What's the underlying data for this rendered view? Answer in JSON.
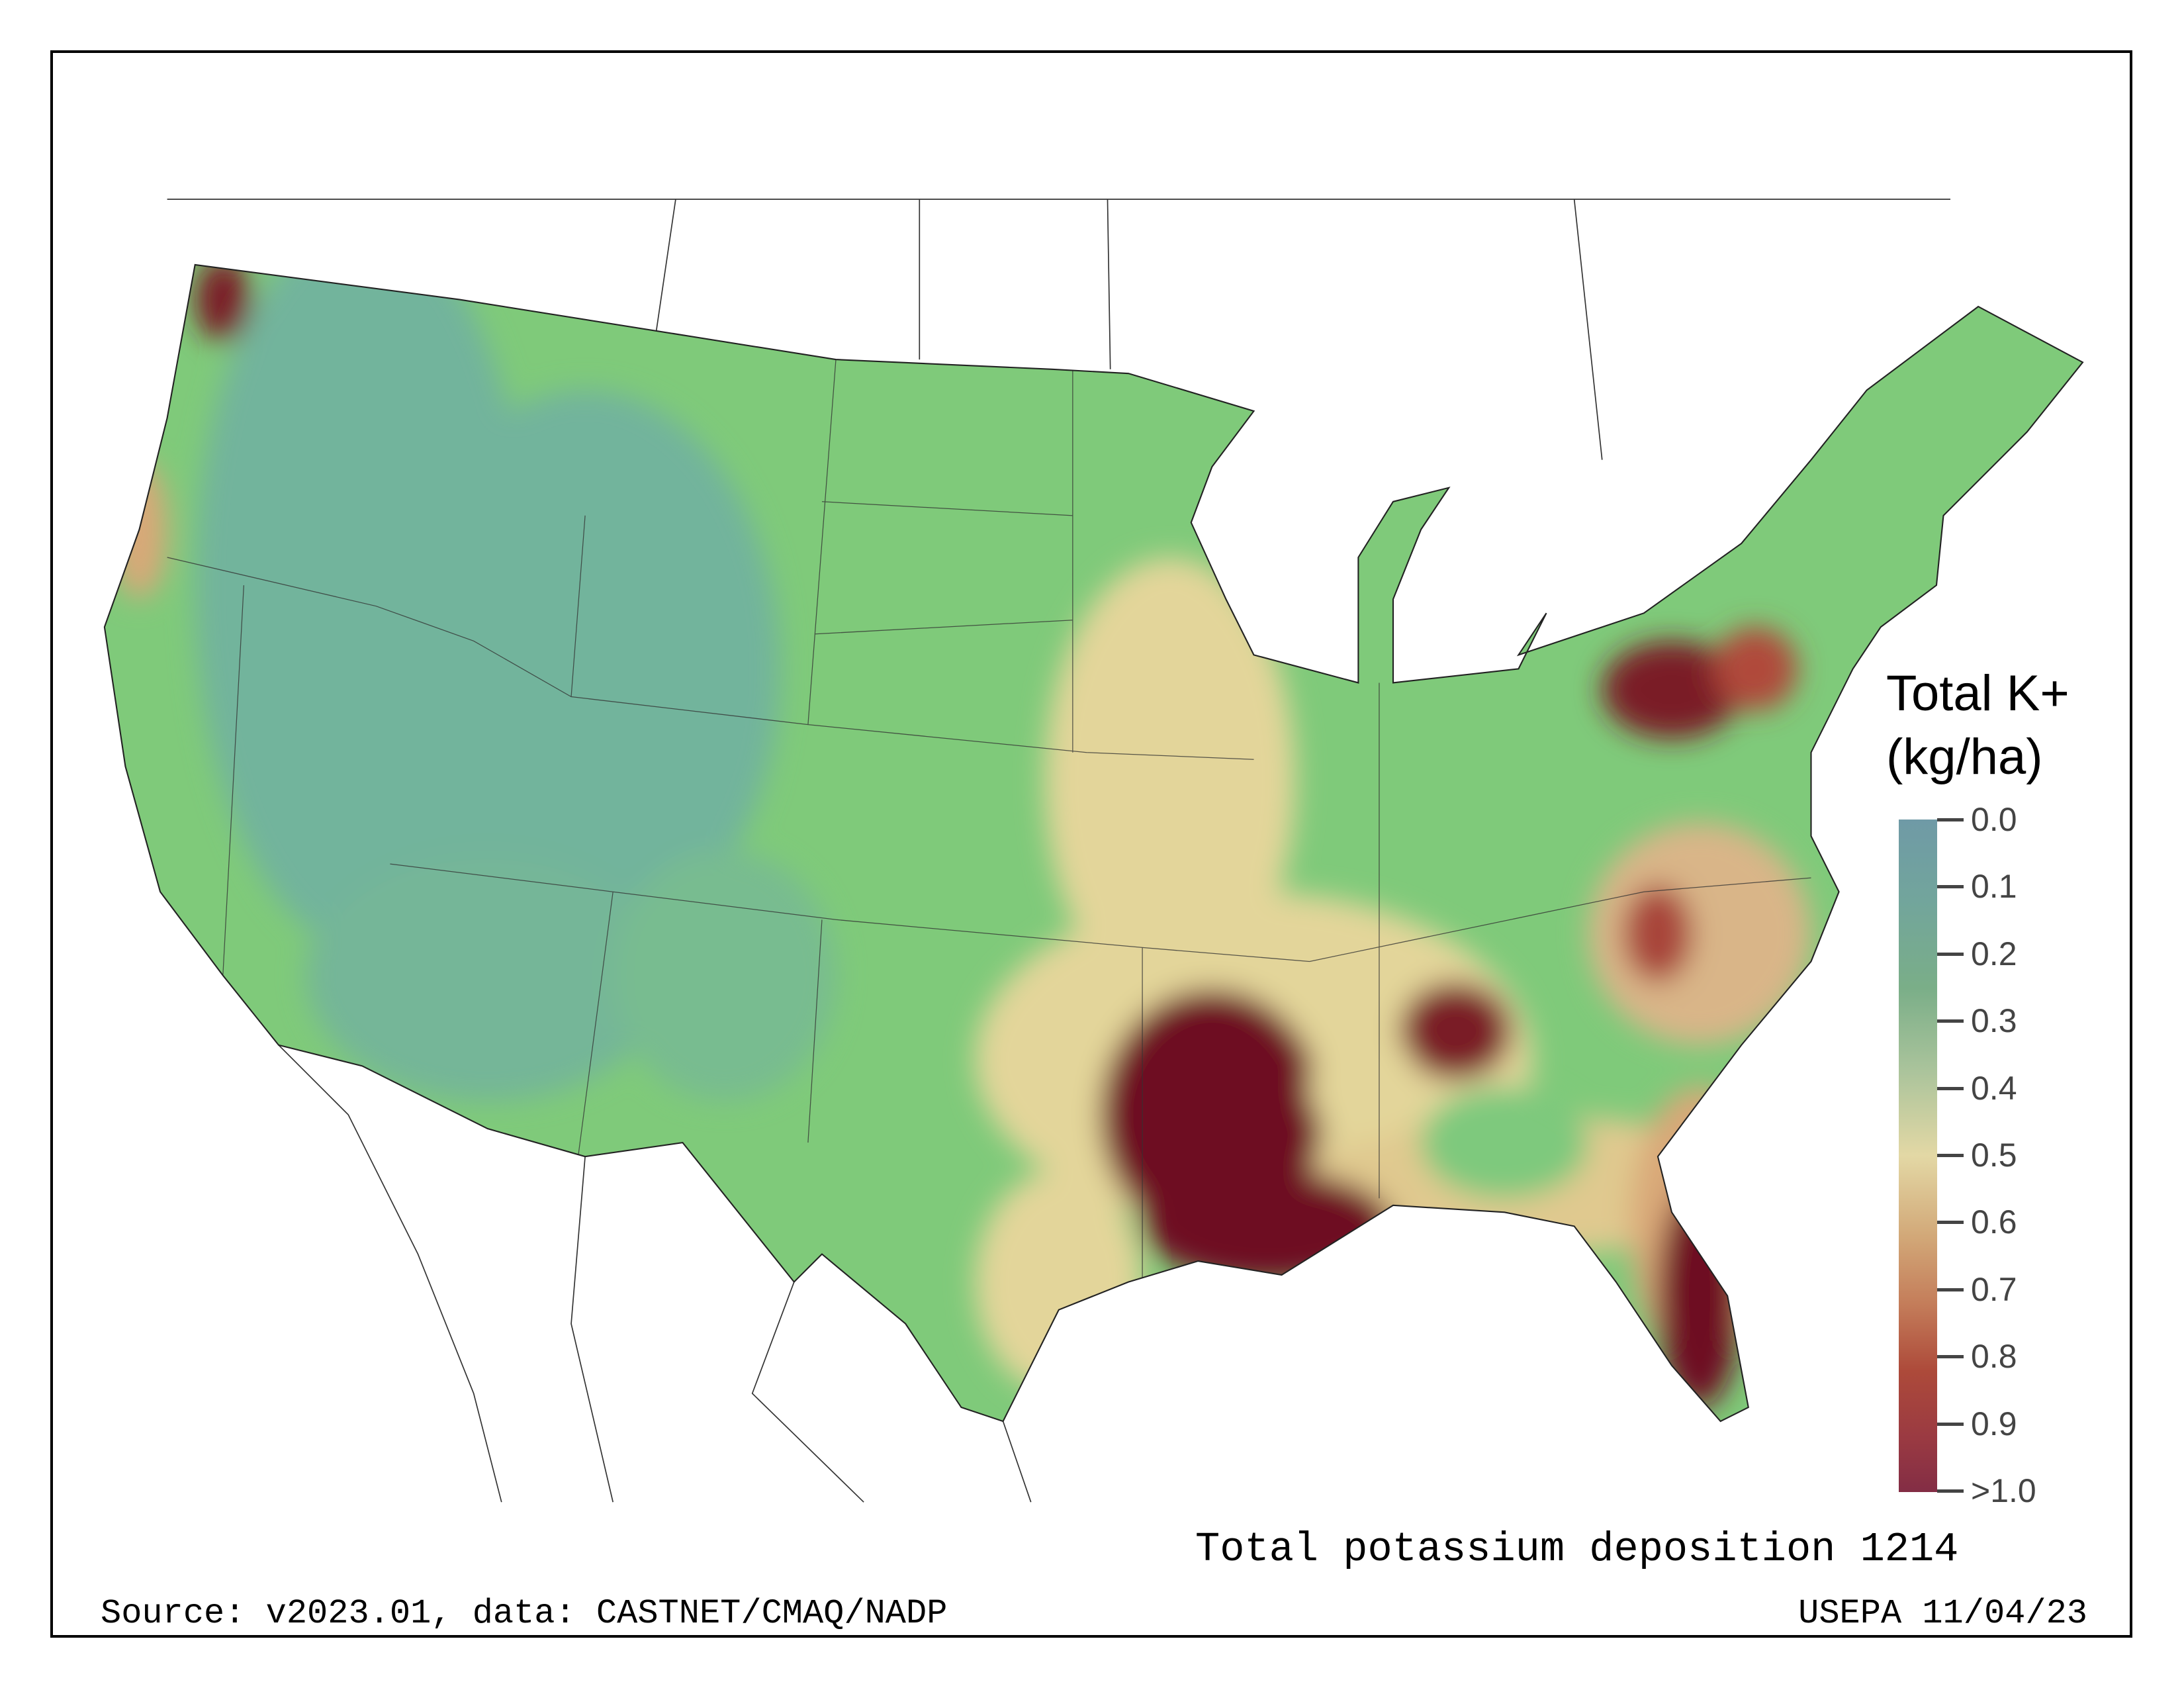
{
  "legend": {
    "title_line1": "Total K+",
    "title_line2": "(kg/ha)",
    "ticks": [
      "0.0",
      "0.1",
      "0.2",
      "0.3",
      "0.4",
      "0.5",
      "0.6",
      "0.7",
      "0.8",
      "0.9",
      ">1.0"
    ],
    "colors": {
      "low": "#6f9aa6",
      "mid": "#e3d8a5",
      "high": "#832d45"
    }
  },
  "captions": {
    "title": "Total potassium deposition 1214",
    "source": "Source: v2023.01, data: CASTNET/CMAQ/NADP",
    "agency": "USEPA 11/04/23"
  }
}
